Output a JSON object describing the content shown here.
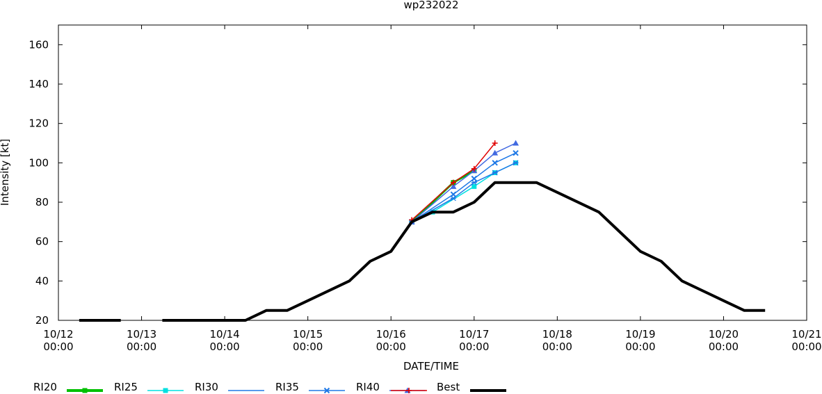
{
  "chart_data": {
    "type": "line",
    "title": "wp232022",
    "xlabel": "DATE/TIME",
    "ylabel": "Intensity [kt]",
    "x_unit": "days since 10/12 00:00",
    "xlim": [
      0,
      9
    ],
    "ylim": [
      20,
      170
    ],
    "yticks": [
      20,
      40,
      60,
      80,
      100,
      120,
      140,
      160
    ],
    "xticks": [
      {
        "x": 0,
        "date": "10/12",
        "time": "00:00"
      },
      {
        "x": 1,
        "date": "10/13",
        "time": "00:00"
      },
      {
        "x": 2,
        "date": "10/14",
        "time": "00:00"
      },
      {
        "x": 3,
        "date": "10/15",
        "time": "00:00"
      },
      {
        "x": 4,
        "date": "10/16",
        "time": "00:00"
      },
      {
        "x": 5,
        "date": "10/17",
        "time": "00:00"
      },
      {
        "x": 6,
        "date": "10/18",
        "time": "00:00"
      },
      {
        "x": 7,
        "date": "10/19",
        "time": "00:00"
      },
      {
        "x": 8,
        "date": "10/20",
        "time": "00:00"
      },
      {
        "x": 9,
        "date": "10/21",
        "time": "00:00"
      }
    ],
    "grid": false,
    "legend_position": "bottom",
    "series": [
      {
        "name": "RI20",
        "color": "#00c000",
        "marker": "square",
        "points": [
          [
            4.25,
            70
          ],
          [
            4.75,
            90
          ],
          [
            5.0,
            96
          ]
        ]
      },
      {
        "name": "RI25",
        "color": "#00e0e0",
        "marker": "square",
        "points": [
          [
            4.25,
            70
          ],
          [
            4.5,
            75
          ],
          [
            5.0,
            88
          ],
          [
            5.25,
            95
          ],
          [
            5.5,
            100
          ]
        ]
      },
      {
        "name": "RI30",
        "color": "#1e78e6",
        "marker": "cross",
        "points": [
          [
            4.25,
            70
          ],
          [
            4.75,
            82
          ],
          [
            5.0,
            90
          ],
          [
            5.25,
            95
          ],
          [
            5.5,
            100
          ]
        ]
      },
      {
        "name": "RI35",
        "color": "#1e78e6",
        "marker": "x",
        "points": [
          [
            4.25,
            70
          ],
          [
            4.75,
            84
          ],
          [
            5.0,
            92
          ],
          [
            5.25,
            100
          ],
          [
            5.5,
            105
          ]
        ]
      },
      {
        "name": "RI40",
        "color": "#4169e1",
        "marker": "triangle",
        "points": [
          [
            4.25,
            70
          ],
          [
            4.75,
            88
          ],
          [
            5.0,
            96
          ],
          [
            5.25,
            105
          ],
          [
            5.5,
            110
          ]
        ]
      },
      {
        "name": "Best",
        "color": "#e00000",
        "marker": "plus",
        "points": [
          [
            4.25,
            71
          ],
          [
            4.75,
            90
          ],
          [
            5.0,
            97
          ],
          [
            5.25,
            110
          ]
        ]
      },
      {
        "name": "Best",
        "color": "#000000",
        "marker": "none",
        "bold": true,
        "segments": [
          [
            [
              0.25,
              20
            ],
            [
              0.75,
              20
            ]
          ],
          [
            [
              1.25,
              20
            ],
            [
              2.25,
              20
            ],
            [
              2.5,
              25
            ],
            [
              2.75,
              25
            ],
            [
              3.0,
              30
            ],
            [
              3.5,
              40
            ],
            [
              3.75,
              50
            ],
            [
              4.0,
              55
            ],
            [
              4.25,
              70
            ],
            [
              4.5,
              75
            ],
            [
              4.75,
              75
            ],
            [
              5.0,
              80
            ],
            [
              5.25,
              90
            ],
            [
              5.75,
              90
            ],
            [
              6.0,
              85
            ],
            [
              6.5,
              75
            ],
            [
              6.75,
              65
            ],
            [
              7.0,
              55
            ],
            [
              7.25,
              50
            ],
            [
              7.5,
              40
            ],
            [
              8.0,
              30
            ],
            [
              8.25,
              25
            ],
            [
              8.5,
              25
            ]
          ]
        ]
      }
    ],
    "legend": [
      {
        "label": "RI20",
        "color": "#00c000",
        "marker": "square",
        "width": 4
      },
      {
        "label": "RI25",
        "color": "#00e0e0",
        "marker": "square",
        "width": 1.5
      },
      {
        "label": "RI30",
        "color": "#1e78e6",
        "marker": "none",
        "width": 1.5
      },
      {
        "label": "RI35",
        "color": "#1e78e6",
        "marker": "x",
        "width": 1.5
      },
      {
        "label": "RI40",
        "color": "#4169e1",
        "marker": "triangle",
        "width": 1.5
      },
      {
        "label": "Best",
        "color": "#e00000",
        "marker": "plus",
        "width": 1.5
      },
      {
        "label": "",
        "color": "#000000",
        "marker": "none",
        "width": 4
      }
    ]
  }
}
